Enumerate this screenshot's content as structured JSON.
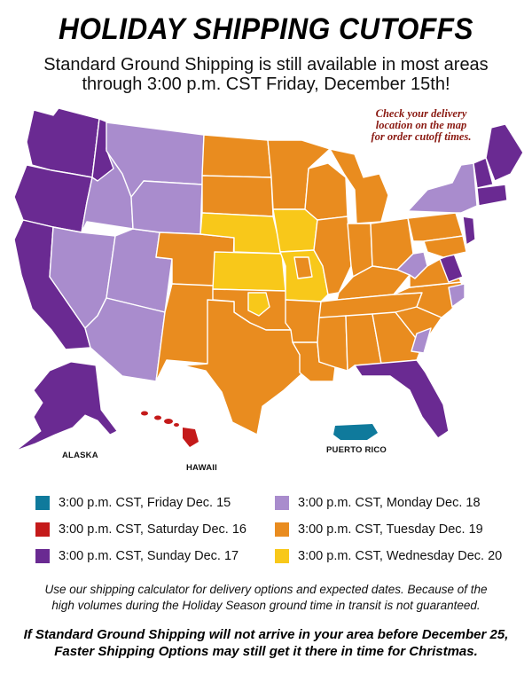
{
  "header": {
    "title": "HOLIDAY SHIPPING CUTOFFS",
    "subtitle_line1": "Standard Ground Shipping is still available in most areas",
    "subtitle_line2": "through 3:00 p.m. CST Friday, December 15th!"
  },
  "map_note": {
    "line1": "Check your delivery",
    "line2": "location on the map",
    "line3": "for order cutoff times."
  },
  "map_labels": {
    "alaska": "ALASKA",
    "hawaii": "HAWAII",
    "puerto_rico": "PUERTO RICO"
  },
  "colors": {
    "teal": "#0f7a9c",
    "red": "#c41a1a",
    "purple": "#6a2a92",
    "lavender": "#a98ccd",
    "orange": "#e98c1f",
    "yellow": "#f8c81a"
  },
  "legend": [
    {
      "label": "3:00 p.m. CST, Friday Dec. 15",
      "color": "#0f7a9c"
    },
    {
      "label": "3:00 p.m. CST, Monday Dec. 18",
      "color": "#a98ccd"
    },
    {
      "label": "3:00 p.m. CST, Saturday Dec. 16",
      "color": "#c41a1a"
    },
    {
      "label": "3:00 p.m. CST, Tuesday Dec. 19",
      "color": "#e98c1f"
    },
    {
      "label": "3:00 p.m. CST, Sunday Dec. 17",
      "color": "#6a2a92"
    },
    {
      "label": "3:00 p.m. CST, Wednesday Dec. 20",
      "color": "#f8c81a"
    }
  ],
  "footnote": {
    "line1": "Use our shipping calculator for delivery options and expected dates. Because of the",
    "line2": "high volumes during the Holiday Season ground time in transit is not guaranteed."
  },
  "cta": {
    "line1": "If Standard Ground Shipping will not arrive in your area before December 25,",
    "line2": "Faster Shipping Options may still get it there in time for Christmas."
  }
}
